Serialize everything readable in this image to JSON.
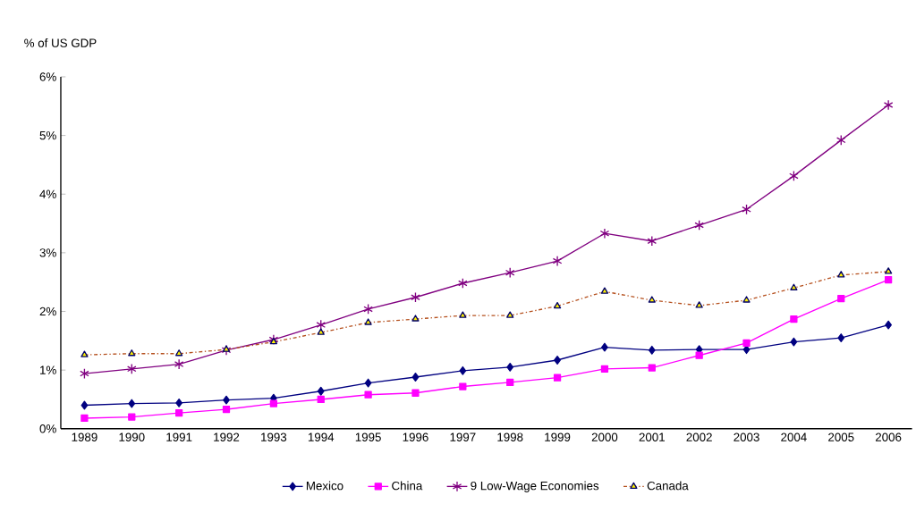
{
  "chart_data": {
    "type": "line",
    "ylabel": "% of US GDP",
    "categories": [
      "1989",
      "1990",
      "1991",
      "1992",
      "1993",
      "1994",
      "1995",
      "1996",
      "1997",
      "1998",
      "1999",
      "2000",
      "2001",
      "2002",
      "2003",
      "2004",
      "2005",
      "2006"
    ],
    "series": [
      {
        "name": "Mexico",
        "color": "#000080",
        "marker": "diamond",
        "line_style": "solid",
        "values": [
          0.4,
          0.43,
          0.44,
          0.49,
          0.52,
          0.64,
          0.78,
          0.88,
          0.99,
          1.05,
          1.17,
          1.39,
          1.34,
          1.35,
          1.35,
          1.48,
          1.55,
          1.77
        ]
      },
      {
        "name": "China",
        "color": "#ff00ff",
        "marker": "square",
        "line_style": "solid",
        "values": [
          0.18,
          0.2,
          0.27,
          0.33,
          0.43,
          0.5,
          0.58,
          0.61,
          0.72,
          0.79,
          0.87,
          1.02,
          1.04,
          1.25,
          1.46,
          1.87,
          2.22,
          2.54
        ]
      },
      {
        "name": "9 Low-Wage  Economies",
        "color": "#800080",
        "marker": "cross",
        "line_style": "solid",
        "values": [
          0.94,
          1.02,
          1.1,
          1.34,
          1.52,
          1.77,
          2.04,
          2.24,
          2.48,
          2.66,
          2.86,
          3.33,
          3.2,
          3.47,
          3.74,
          4.31,
          4.92,
          5.52
        ]
      },
      {
        "name": "Canada",
        "color": "#b5501e",
        "marker": "triangle",
        "line_style": "dashdot",
        "values": [
          1.26,
          1.28,
          1.28,
          1.35,
          1.48,
          1.64,
          1.81,
          1.87,
          1.93,
          1.93,
          2.09,
          2.34,
          2.19,
          2.1,
          2.19,
          2.4,
          2.62,
          2.68
        ]
      }
    ],
    "ylim": [
      0,
      6
    ],
    "yticks": [
      {
        "value": 0,
        "label": "0%"
      },
      {
        "value": 1,
        "label": "1%"
      },
      {
        "value": 2,
        "label": "2%"
      },
      {
        "value": 3,
        "label": "3%"
      },
      {
        "value": 4,
        "label": "4%"
      },
      {
        "value": 5,
        "label": "5%"
      },
      {
        "value": 6,
        "label": "6%"
      }
    ],
    "grid": false,
    "legend": "bottom"
  }
}
